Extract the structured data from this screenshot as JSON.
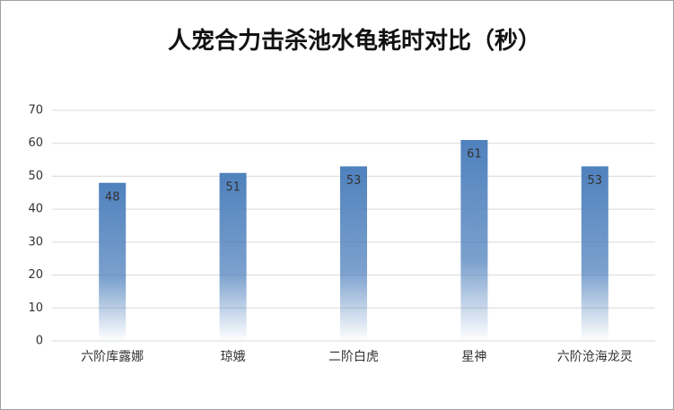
{
  "chart_data": {
    "type": "bar",
    "title": "人宠合力击杀池水龟耗时对比（秒）",
    "categories": [
      "六阶库露娜",
      "琼娥",
      "二阶白虎",
      "星神",
      "六阶沧海龙灵"
    ],
    "values": [
      48,
      51,
      53,
      61,
      53
    ],
    "color": "#4f81bd",
    "ylim": [
      0,
      70
    ],
    "yticks": [
      0,
      10,
      20,
      30,
      40,
      50,
      60,
      70
    ],
    "grid": true
  }
}
